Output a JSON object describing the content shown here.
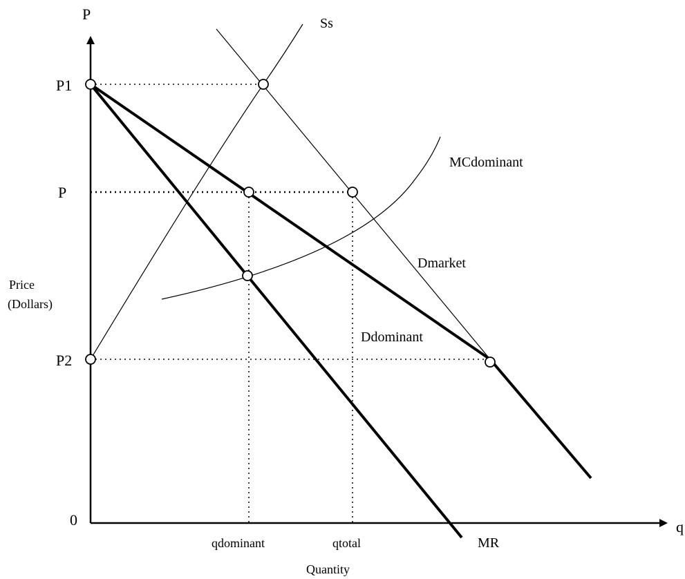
{
  "axes": {
    "y_symbol": "P",
    "x_symbol": "q",
    "origin": "0",
    "y_title_line1": "Price",
    "y_title_line2": "(Dollars)",
    "x_title": "Quantity"
  },
  "price_levels": {
    "p1": "P1",
    "p": "P",
    "p2": "P2"
  },
  "quantity_levels": {
    "q_dominant": "qdominant",
    "q_total": "qtotal"
  },
  "curves": {
    "supply_small": "Ss",
    "mc_dominant": "MCdominant",
    "d_market": "Dmarket",
    "d_dominant": "Ddominant",
    "mr": "MR"
  },
  "colors": {
    "ink": "#000000",
    "background": "#ffffff"
  }
}
